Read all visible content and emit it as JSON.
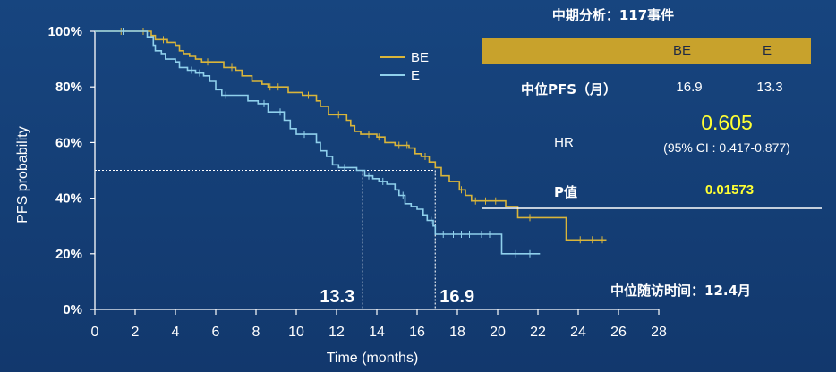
{
  "summary": {
    "header": "中期分析：117事件",
    "columns": [
      "BE",
      "E"
    ],
    "median_pfs_label": "中位PFS（月）",
    "median_pfs_values": [
      "16.9",
      "13.3"
    ],
    "hr_label": "HR",
    "hr_value": "0.605",
    "hr_ci": "(95% CI : 0.417-0.877)",
    "p_label": "P值",
    "p_value": "0.01573",
    "followup": "中位随访时间：12.4月"
  },
  "chart_data": {
    "type": "line",
    "xlabel": "Time (months)",
    "ylabel": "PFS probability",
    "xlim": [
      0,
      28
    ],
    "ylim": [
      0,
      100
    ],
    "x_ticks": [
      0,
      2,
      4,
      6,
      8,
      10,
      12,
      14,
      16,
      18,
      20,
      22,
      24,
      26,
      28
    ],
    "y_ticks": [
      0,
      20,
      40,
      60,
      80,
      100
    ],
    "y_tick_labels": [
      "0%",
      "20%",
      "40%",
      "60%",
      "80%",
      "100%"
    ],
    "median_reference": {
      "y": 50,
      "x_values": [
        13.3,
        16.9
      ],
      "labels": [
        "13.3",
        "16.9"
      ]
    },
    "legend_position": "top-center",
    "series": [
      {
        "name": "BE",
        "color": "#d9b53a",
        "points": [
          [
            0,
            100
          ],
          [
            2.5,
            100
          ],
          [
            2.8,
            98.5
          ],
          [
            3,
            97
          ],
          [
            3.6,
            96
          ],
          [
            4,
            95
          ],
          [
            4.2,
            93
          ],
          [
            4.4,
            92
          ],
          [
            4.7,
            91
          ],
          [
            5,
            90
          ],
          [
            5.3,
            89
          ],
          [
            6,
            89
          ],
          [
            6.4,
            87
          ],
          [
            7,
            86
          ],
          [
            7.3,
            84
          ],
          [
            7.8,
            82
          ],
          [
            8.3,
            81
          ],
          [
            8.6,
            80
          ],
          [
            9.3,
            80
          ],
          [
            9.6,
            78
          ],
          [
            10.3,
            77
          ],
          [
            11,
            75
          ],
          [
            11.2,
            73
          ],
          [
            11.6,
            70
          ],
          [
            12.3,
            70
          ],
          [
            12.5,
            68
          ],
          [
            12.7,
            66
          ],
          [
            12.9,
            64
          ],
          [
            13.2,
            63
          ],
          [
            14,
            62
          ],
          [
            14.4,
            60
          ],
          [
            14.9,
            59
          ],
          [
            15.6,
            58
          ],
          [
            15.9,
            56
          ],
          [
            16.2,
            55
          ],
          [
            16.6,
            53
          ],
          [
            16.9,
            51
          ],
          [
            17.2,
            48
          ],
          [
            17.6,
            46
          ],
          [
            18.1,
            43
          ],
          [
            18.4,
            41
          ],
          [
            18.7,
            39
          ],
          [
            19.3,
            39
          ],
          [
            20.1,
            39
          ],
          [
            20.4,
            37
          ],
          [
            20.9,
            37
          ],
          [
            21,
            33
          ],
          [
            22.3,
            33
          ],
          [
            23.2,
            33
          ],
          [
            23.4,
            25
          ],
          [
            25.4,
            25
          ]
        ],
        "censor_x": [
          1.3,
          2.4,
          3.4,
          5.6,
          6.8,
          8.7,
          9.1,
          10.6,
          12.1,
          13.6,
          14.1,
          15.1,
          15.5,
          16.4,
          18.2,
          18.9,
          19.4,
          19.9,
          21.6,
          22.6,
          24.1,
          24.7,
          25.2
        ]
      },
      {
        "name": "E",
        "color": "#8fd0ec",
        "points": [
          [
            0,
            100
          ],
          [
            1.5,
            100
          ],
          [
            2.6,
            98
          ],
          [
            2.9,
            95
          ],
          [
            3,
            93
          ],
          [
            3.3,
            92
          ],
          [
            3.5,
            90
          ],
          [
            4,
            89
          ],
          [
            4.2,
            87
          ],
          [
            4.6,
            86
          ],
          [
            5,
            85
          ],
          [
            5.4,
            84
          ],
          [
            5.7,
            82
          ],
          [
            6,
            79
          ],
          [
            6.3,
            77
          ],
          [
            7.2,
            77
          ],
          [
            7.6,
            75
          ],
          [
            8.1,
            74
          ],
          [
            8.6,
            71
          ],
          [
            9,
            71
          ],
          [
            9.4,
            68
          ],
          [
            9.7,
            65
          ],
          [
            10,
            63
          ],
          [
            10.9,
            63
          ],
          [
            11,
            60
          ],
          [
            11.2,
            57
          ],
          [
            11.5,
            55
          ],
          [
            11.8,
            52
          ],
          [
            12.1,
            51
          ],
          [
            12.7,
            51
          ],
          [
            13,
            50
          ],
          [
            13.4,
            48
          ],
          [
            13.8,
            47
          ],
          [
            14.1,
            46
          ],
          [
            14.5,
            45
          ],
          [
            14.9,
            43
          ],
          [
            15.1,
            41
          ],
          [
            15.4,
            38
          ],
          [
            15.7,
            37
          ],
          [
            16,
            36
          ],
          [
            16.3,
            34
          ],
          [
            16.5,
            32
          ],
          [
            16.8,
            30
          ],
          [
            16.9,
            27
          ],
          [
            19,
            27
          ],
          [
            20,
            27
          ],
          [
            20.2,
            20
          ],
          [
            22.1,
            20
          ]
        ],
        "censor_x": [
          1.4,
          4.8,
          5.2,
          6.5,
          8.4,
          9.2,
          10.4,
          12.4,
          13.6,
          14.3,
          15.3,
          16.7,
          17.3,
          17.8,
          18.2,
          18.6,
          19.2,
          19.6,
          20.9,
          21.6
        ]
      }
    ]
  }
}
